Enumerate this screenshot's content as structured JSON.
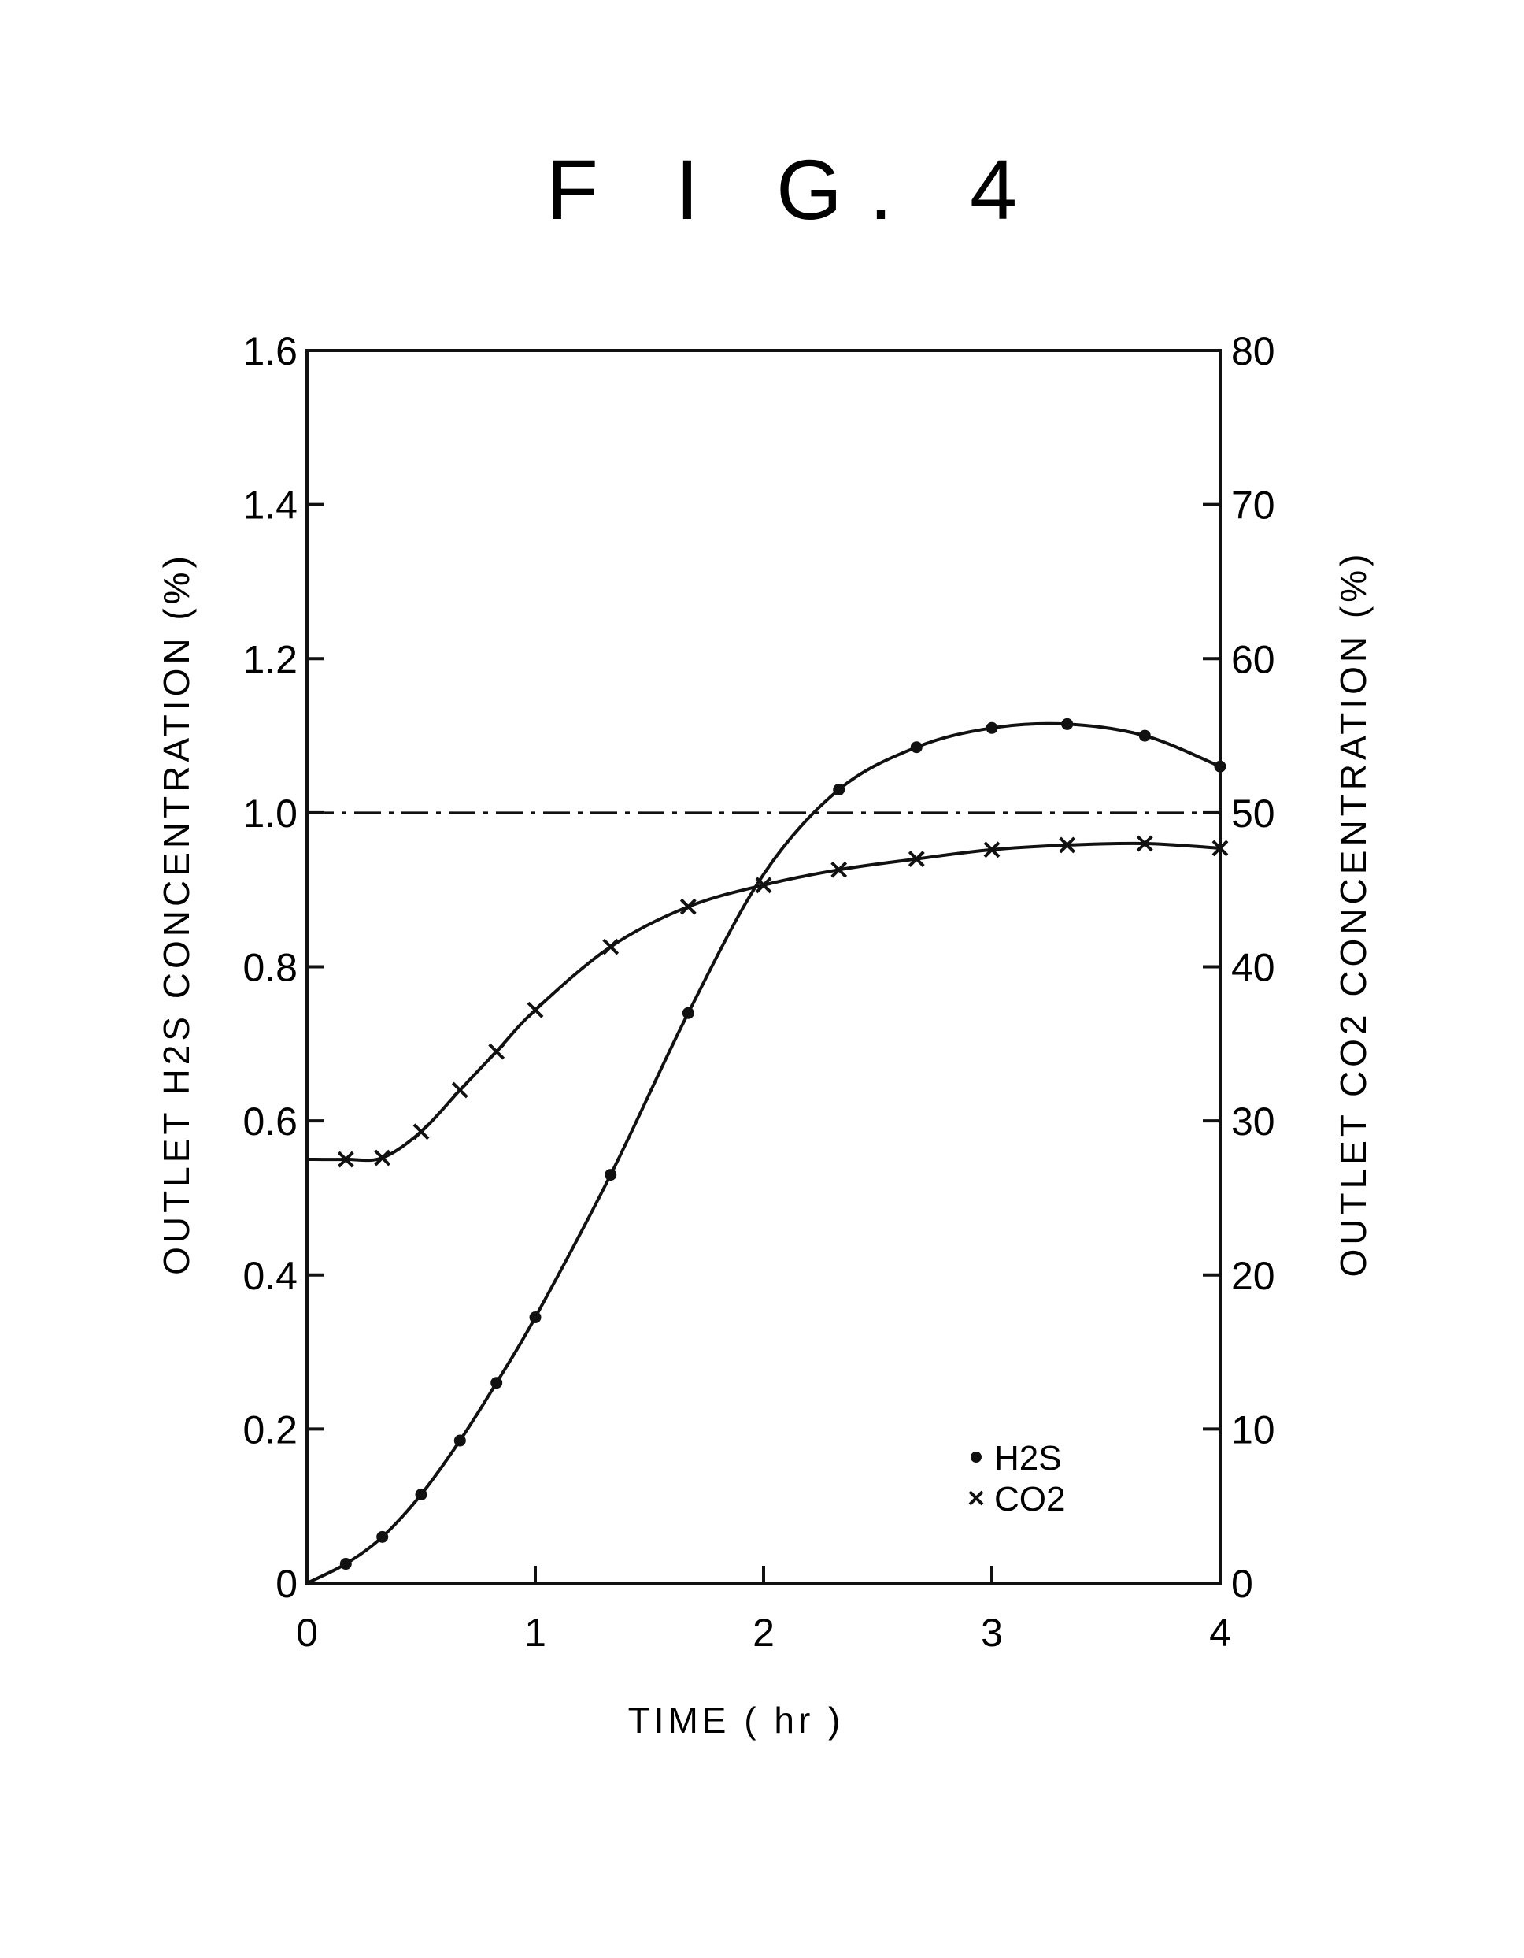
{
  "figure": {
    "title": "F I G. 4"
  },
  "chart_data": {
    "type": "line",
    "title": "F I G. 4",
    "xlabel": "TIME ( hr )",
    "ylabel_left": "OUTLET H2S CONCENTRATION (%)",
    "ylabel_right": "OUTLET CO2 CONCENTRATION (%)",
    "xlim": [
      0,
      4
    ],
    "ylim_left": [
      0,
      1.6
    ],
    "ylim_right": [
      0,
      80
    ],
    "x_ticks": [
      "0",
      "1",
      "2",
      "3",
      "4"
    ],
    "y_left_ticks": [
      "0",
      "0.2",
      "0.4",
      "0.6",
      "0.8",
      "1.0",
      "1.2",
      "1.4",
      "1.6"
    ],
    "y_right_ticks": [
      "0",
      "10",
      "20",
      "30",
      "40",
      "50",
      "60",
      "70",
      "80"
    ],
    "grid": false,
    "legend_position": "bottom-right",
    "reference_line": {
      "axis": "left",
      "y": 1.0,
      "style": "dash-dot"
    },
    "series": [
      {
        "name": "H2S",
        "marker": "dot",
        "axis": "left",
        "x": [
          0,
          0.17,
          0.33,
          0.5,
          0.67,
          0.83,
          1.0,
          1.33,
          1.67,
          2.0,
          2.33,
          2.67,
          3.0,
          3.33,
          3.67,
          4.0
        ],
        "y": [
          0,
          0.025,
          0.06,
          0.115,
          0.185,
          0.26,
          0.345,
          0.53,
          0.74,
          0.92,
          1.03,
          1.085,
          1.11,
          1.115,
          1.1,
          1.06
        ],
        "marker_x": [
          0.17,
          0.33,
          0.5,
          0.67,
          0.83,
          1.0,
          1.33,
          1.67,
          2.33,
          2.67,
          3.0,
          3.33,
          3.67,
          4.0
        ],
        "marker_y": [
          0.025,
          0.06,
          0.115,
          0.185,
          0.26,
          0.345,
          0.53,
          0.74,
          1.03,
          1.085,
          1.11,
          1.115,
          1.1,
          1.06
        ]
      },
      {
        "name": "CO2",
        "marker": "x",
        "axis": "right",
        "x": [
          0,
          0.17,
          0.33,
          0.5,
          0.67,
          0.83,
          1.0,
          1.33,
          1.67,
          2.0,
          2.33,
          2.67,
          3.0,
          3.33,
          3.67,
          4.0
        ],
        "y": [
          27.5,
          27.5,
          27.6,
          29.3,
          32.0,
          34.5,
          37.2,
          41.3,
          43.9,
          45.3,
          46.3,
          47.0,
          47.6,
          47.9,
          48.0,
          47.7
        ],
        "marker_x": [
          0.17,
          0.33,
          0.5,
          0.67,
          0.83,
          1.0,
          1.33,
          1.67,
          2.0,
          2.33,
          2.67,
          3.0,
          3.33,
          3.67,
          4.0
        ],
        "marker_y": [
          27.5,
          27.6,
          29.3,
          32.0,
          34.5,
          37.2,
          41.3,
          43.9,
          45.3,
          46.3,
          47.0,
          47.6,
          47.9,
          48.0,
          47.7
        ]
      }
    ],
    "legend": {
      "h2s_label": "H2S",
      "co2_label": "CO2"
    }
  }
}
